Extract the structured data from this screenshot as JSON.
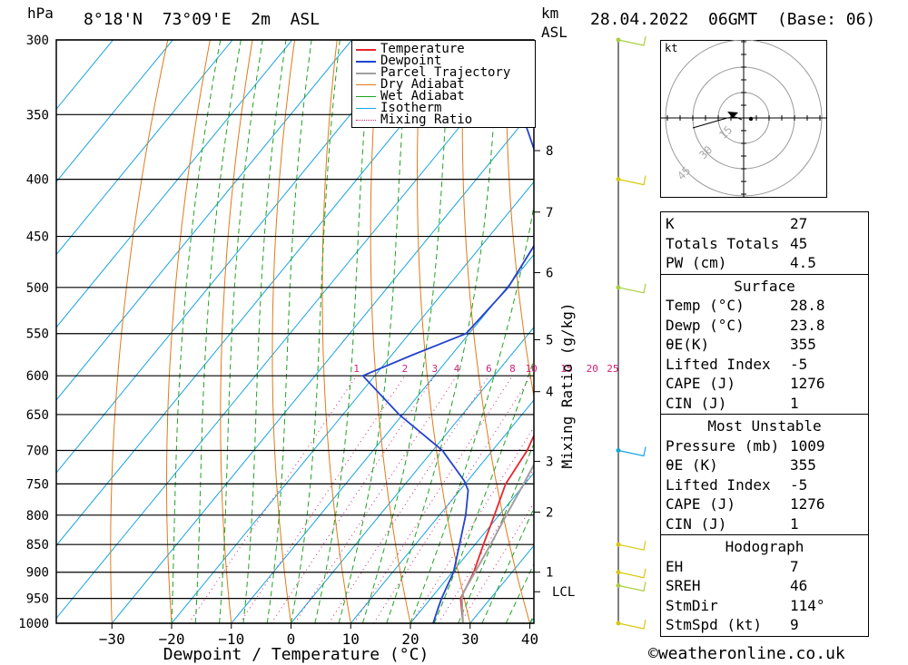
{
  "header": {
    "pressure_unit": "hPa",
    "location": "8°18'N  73°09'E  2m  ASL",
    "km_label": "km",
    "asl_label": "ASL",
    "datetime": "28.04.2022  06GMT  (Base: 06)"
  },
  "chart_data": {
    "type": "line",
    "title": "Skew-T log-P diagram",
    "xlabel": "Dewpoint / Temperature (°C)",
    "ylabel": "hPa",
    "mixing_ratio_axis_label": "Mixing Ratio (g/kg)",
    "x_ticks": [
      -30,
      -20,
      -10,
      0,
      10,
      20,
      30,
      40
    ],
    "pressure_levels": [
      300,
      350,
      400,
      450,
      500,
      550,
      600,
      650,
      700,
      750,
      800,
      850,
      900,
      950,
      1000
    ],
    "ylim": [
      1000,
      300
    ],
    "km_ticks": [
      {
        "label": "8",
        "p": 377
      },
      {
        "label": "7",
        "p": 428
      },
      {
        "label": "6",
        "p": 485
      },
      {
        "label": "5",
        "p": 557
      },
      {
        "label": "4",
        "p": 620
      },
      {
        "label": "3",
        "p": 716
      },
      {
        "label": "2",
        "p": 795
      },
      {
        "label": "1",
        "p": 900
      },
      {
        "label": "LCL",
        "p": 937
      }
    ],
    "mixing_ratio_labels": [
      "1",
      "2",
      "3",
      "4",
      "6",
      "8",
      "10",
      "15",
      "20",
      "25"
    ],
    "mixing_ratio_values": [
      1,
      2,
      3,
      4,
      6,
      8,
      10,
      15,
      20,
      25
    ],
    "series": [
      {
        "name": "Temperature",
        "color": "#e8262c",
        "points": [
          [
            1000,
            28.8
          ],
          [
            950,
            25.0
          ],
          [
            900,
            23.6
          ],
          [
            850,
            21.4
          ],
          [
            800,
            19.2
          ],
          [
            750,
            16.8
          ],
          [
            700,
            15.8
          ],
          [
            650,
            13.6
          ],
          [
            600,
            10.8
          ],
          [
            550,
            6.6
          ],
          [
            500,
            1.8
          ],
          [
            450,
            -3.4
          ],
          [
            400,
            -9.2
          ],
          [
            350,
            -15.6
          ],
          [
            300,
            -23.8
          ]
        ]
      },
      {
        "name": "Dewpoint",
        "color": "#2342d0",
        "points": [
          [
            1000,
            23.8
          ],
          [
            970,
            22.6
          ],
          [
            950,
            21.8
          ],
          [
            900,
            20.2
          ],
          [
            850,
            17.4
          ],
          [
            800,
            14.4
          ],
          [
            760,
            11.4
          ],
          [
            745,
            9.4
          ],
          [
            700,
            1.6
          ],
          [
            650,
            -10.6
          ],
          [
            600,
            -22.0
          ],
          [
            575,
            -16.6
          ],
          [
            550,
            -10.5
          ],
          [
            500,
            -9.8
          ],
          [
            450,
            -11.5
          ],
          [
            400,
            -18.6
          ],
          [
            350,
            -31.2
          ],
          [
            300,
            -33.6
          ]
        ]
      },
      {
        "name": "Parcel Trajectory",
        "color": "#a0a0a0",
        "points": [
          [
            1000,
            28.8
          ],
          [
            950,
            25.2
          ],
          [
            937,
            24.6
          ],
          [
            900,
            23.8
          ],
          [
            850,
            22.6
          ],
          [
            800,
            21.2
          ],
          [
            750,
            19.8
          ],
          [
            700,
            18.2
          ],
          [
            650,
            16.4
          ],
          [
            600,
            14.4
          ],
          [
            550,
            12.0
          ],
          [
            500,
            9.2
          ],
          [
            450,
            5.8
          ],
          [
            400,
            1.8
          ],
          [
            380,
            0.2
          ]
        ]
      }
    ],
    "legend": [
      "Temperature",
      "Dewpoint",
      "Parcel Trajectory",
      "Dry Adiabat",
      "Wet Adiabat",
      "Isotherm",
      "Mixing Ratio"
    ],
    "colors": {
      "temperature": "#e8262c",
      "dewpoint": "#2342d0",
      "parcel": "#a0a0a0",
      "dry_adiabat": "#e07a1a",
      "wet_adiabat": "#1fa31f",
      "isotherm": "#18a4e0",
      "mixing_ratio": "#d0207a"
    },
    "wind_barbs": [
      {
        "p": 300,
        "color": "#a8d040"
      },
      {
        "p": 400,
        "color": "#d8c810"
      },
      {
        "p": 500,
        "color": "#a8d040"
      },
      {
        "p": 700,
        "color": "#18a4e0"
      },
      {
        "p": 850,
        "color": "#d8c810"
      },
      {
        "p": 900,
        "color": "#d8c810"
      },
      {
        "p": 925,
        "color": "#a8d040"
      },
      {
        "p": 1000,
        "color": "#d8c810"
      }
    ]
  },
  "hodograph": {
    "unit": "kt",
    "ring_labels": [
      "15",
      "30",
      "45"
    ]
  },
  "indices": {
    "general": [
      {
        "label": "K",
        "value": "27"
      },
      {
        "label": "Totals Totals",
        "value": "45"
      },
      {
        "label": "PW (cm)",
        "value": "4.5"
      }
    ],
    "surface_title": "Surface",
    "surface": [
      {
        "label": "Temp (°C)",
        "value": "28.8"
      },
      {
        "label": "Dewp (°C)",
        "value": "23.8"
      },
      {
        "label": "θE(K)",
        "value": "355"
      },
      {
        "label": "Lifted Index",
        "value": "-5"
      },
      {
        "label": "CAPE (J)",
        "value": "1276"
      },
      {
        "label": "CIN (J)",
        "value": "1"
      }
    ],
    "unstable_title": "Most Unstable",
    "unstable": [
      {
        "label": "Pressure (mb)",
        "value": "1009"
      },
      {
        "label": "θE (K)",
        "value": "355"
      },
      {
        "label": "Lifted Index",
        "value": "-5"
      },
      {
        "label": "CAPE (J)",
        "value": "1276"
      },
      {
        "label": "CIN (J)",
        "value": "1"
      }
    ],
    "hodograph_title": "Hodograph",
    "hodograph": [
      {
        "label": "EH",
        "value": "7"
      },
      {
        "label": "SREH",
        "value": "46"
      },
      {
        "label": "StmDir",
        "value": "114°"
      },
      {
        "label": "StmSpd (kt)",
        "value": "9"
      }
    ]
  },
  "footer": {
    "copyright": "©weatheronline.co.uk"
  }
}
